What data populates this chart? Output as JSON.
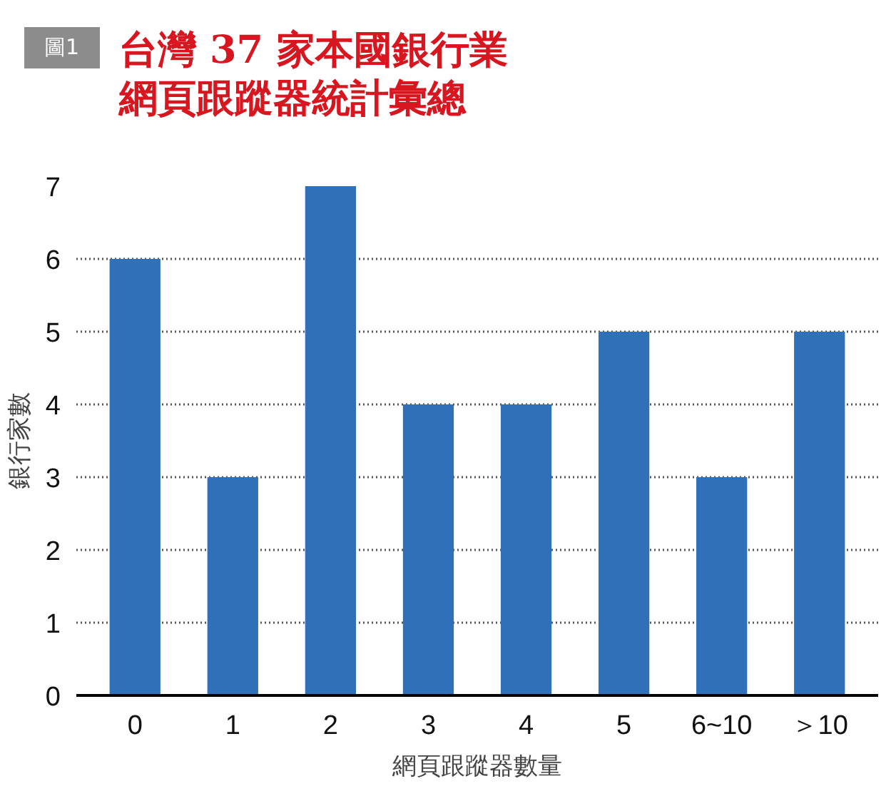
{
  "chart_data": {
    "type": "bar",
    "title": "台灣 37 家本國銀行業",
    "subtitle": "網頁跟蹤器統計彙總",
    "annotations": [
      "圖1"
    ],
    "xlabel": "網頁跟蹤器數量",
    "ylabel": "銀行家數",
    "categories": [
      "0",
      "1",
      "2",
      "3",
      "4",
      "5",
      "6~10",
      "＞10"
    ],
    "values": [
      6,
      3,
      7,
      4,
      4,
      5,
      3,
      5
    ],
    "color": "#2f70b9",
    "ylim": [
      0,
      7
    ],
    "yticks": [
      0,
      1,
      2,
      3,
      4,
      5,
      6,
      7
    ],
    "grid": "y"
  }
}
